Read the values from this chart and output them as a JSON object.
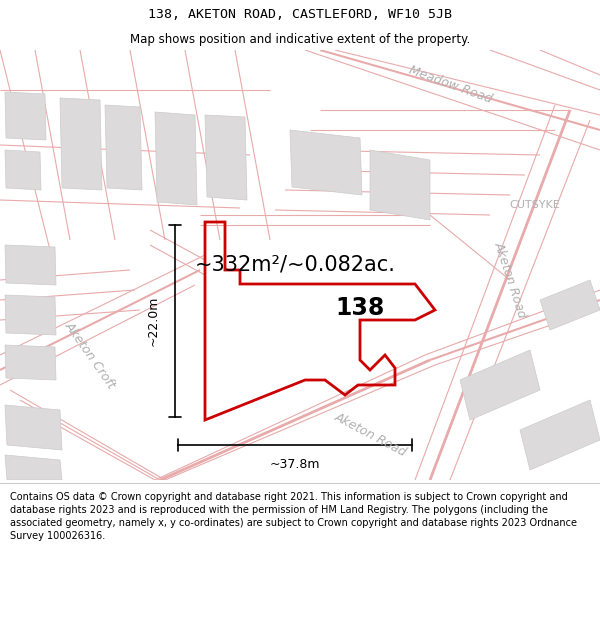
{
  "title": "138, AKETON ROAD, CASTLEFORD, WF10 5JB",
  "subtitle": "Map shows position and indicative extent of the property.",
  "area_text": "~332m²/~0.082ac.",
  "dim_width": "~37.8m",
  "dim_height": "~22.0m",
  "label_138": "138",
  "footer": "Contains OS data © Crown copyright and database right 2021. This information is subject to Crown copyright and database rights 2023 and is reproduced with the permission of HM Land Registry. The polygons (including the associated geometry, namely x, y co-ordinates) are subject to Crown copyright and database rights 2023 Ordnance Survey 100026316.",
  "bg_color": "#f7f4f4",
  "property_color": "#cc0000",
  "road_color": "#e8aaaa",
  "road_fill": "#f5e8e8",
  "road_label_color": "#b0b0b0",
  "building_color": "#dcdada",
  "building_edge": "#cccccc",
  "footer_text_color": "#000000",
  "title_color": "#000000",
  "cutsyke_label": "CUTSYKE",
  "meadow_road_label": "Meadow Road",
  "aketon_road_label": "Aketon Road",
  "aketon_road_label2": "Aketon Road",
  "aketon_croft_label": "Aketon Croft",
  "title_fontsize": 9.5,
  "subtitle_fontsize": 8.5,
  "area_fontsize": 15,
  "label_fontsize": 17,
  "dim_fontsize": 9,
  "road_label_fontsize": 9,
  "cutsyke_fontsize": 8,
  "footer_fontsize": 7.0
}
